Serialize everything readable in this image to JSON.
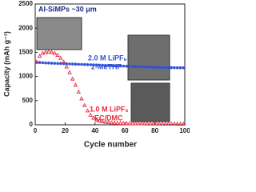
{
  "chart_data": {
    "type": "scatter",
    "title": "Al-SiMPs ~30 μm",
    "x_label": "Cycle number",
    "y_label": "Capacity (mAh g⁻¹)",
    "annotations": [
      "2.0 M LiPF₆",
      "2-MeTHF",
      "1.0 M LiPF₆",
      "EC/DMC"
    ],
    "x": [
      1,
      3,
      5,
      7,
      9,
      11,
      13,
      15,
      17,
      19,
      21,
      23,
      25,
      27,
      29,
      31,
      33,
      35,
      37,
      39,
      41,
      43,
      45,
      47,
      49,
      51,
      53,
      55,
      57,
      59,
      61,
      63,
      65,
      67,
      69,
      71,
      73,
      75,
      77,
      79,
      81,
      83,
      85,
      87,
      89,
      91,
      93,
      95,
      97,
      99
    ],
    "series": [
      {
        "name": "2.0 M LiPF₆ 2-MeTHF",
        "color": "#2f4fd8",
        "values": [
          1290,
          1290,
          1285,
          1280,
          1278,
          1275,
          1272,
          1270,
          1268,
          1265,
          1262,
          1260,
          1258,
          1255,
          1252,
          1250,
          1248,
          1245,
          1242,
          1240,
          1238,
          1235,
          1232,
          1230,
          1228,
          1225,
          1222,
          1220,
          1218,
          1215,
          1212,
          1210,
          1208,
          1205,
          1202,
          1200,
          1198,
          1196,
          1194,
          1192,
          1190,
          1188,
          1186,
          1185,
          1184,
          1183,
          1182,
          1181,
          1180,
          1180
        ]
      },
      {
        "name": "1.0 M LiPF₆ EC/DMC",
        "color": "#e8283c",
        "values": [
          1300,
          1420,
          1480,
          1500,
          1510,
          1500,
          1480,
          1440,
          1380,
          1300,
          1200,
          1080,
          950,
          820,
          680,
          540,
          400,
          290,
          200,
          140,
          100,
          80,
          65,
          55,
          48,
          42,
          38,
          35,
          32,
          30,
          28,
          27,
          26,
          25,
          24,
          23,
          22,
          21,
          21,
          20,
          20,
          19,
          19,
          18,
          18,
          17,
          17,
          16,
          16,
          15
        ]
      }
    ],
    "xlim": [
      0,
      100
    ],
    "xticks": [
      0,
      20,
      40,
      60,
      80,
      100
    ],
    "ylim": [
      0,
      2500
    ],
    "yticks": [
      0,
      500,
      1000,
      1500,
      2000,
      2500
    ]
  }
}
